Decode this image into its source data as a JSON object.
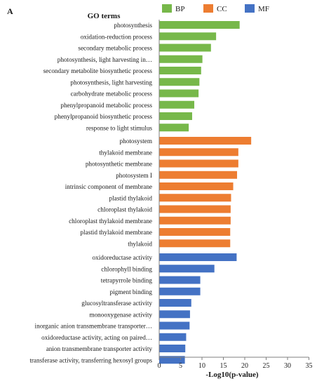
{
  "panel_label": "A",
  "chart_data": {
    "type": "bar",
    "orientation": "horizontal",
    "title": "GO terms",
    "xlabel": "-Log10(p-value)",
    "ylabel": "",
    "xlim": [
      0,
      35
    ],
    "xticks": [
      0,
      5,
      10,
      15,
      20,
      25,
      30,
      35
    ],
    "grid": false,
    "legend_position": "top",
    "series": [
      {
        "name": "BP",
        "color": "#77b84a",
        "categories": [
          "photosynthesis",
          "oxidation-reduction process",
          "secondary metabolic process",
          "photosynthesis, light harvesting in…",
          "secondary metabolite biosynthetic process",
          "photosynthesis, light harvesting",
          "carbohydrate metabolic process",
          "phenylpropanoid metabolic process",
          "phenylpropanoid biosynthetic process",
          "response to light stimulus"
        ],
        "values": [
          18.8,
          13.3,
          12.1,
          10.1,
          9.8,
          9.4,
          9.2,
          8.2,
          7.7,
          6.9
        ]
      },
      {
        "name": "CC",
        "color": "#ed7d31",
        "categories": [
          "photosystem",
          "thylakoid membrane",
          "photosynthetic membrane",
          "photosystem I",
          "intrinsic component of membrane",
          "plastid thylakoid",
          "chloroplast thylakoid",
          "chloroplast thylakoid membrane",
          "plastid thylakoid membrane",
          "thylakoid"
        ],
        "values": [
          21.5,
          18.5,
          18.5,
          18.2,
          17.3,
          16.8,
          16.7,
          16.7,
          16.6,
          16.6
        ]
      },
      {
        "name": "MF",
        "color": "#4472c4",
        "categories": [
          "oxidoreductase activity",
          "chlorophyll binding",
          "tetrapyrrole binding",
          "pigment binding",
          "glucosyltransferase activity",
          "monooxygenase activity",
          "inorganic anion transmembrane transporter…",
          "oxidoreductase activity, acting on paired…",
          "anion transmembrane transporter activity",
          "transferase activity, transferring hexosyl groups"
        ],
        "values": [
          18.1,
          12.9,
          9.6,
          9.6,
          7.5,
          7.2,
          7.1,
          6.3,
          6.1,
          6.0
        ]
      }
    ]
  }
}
